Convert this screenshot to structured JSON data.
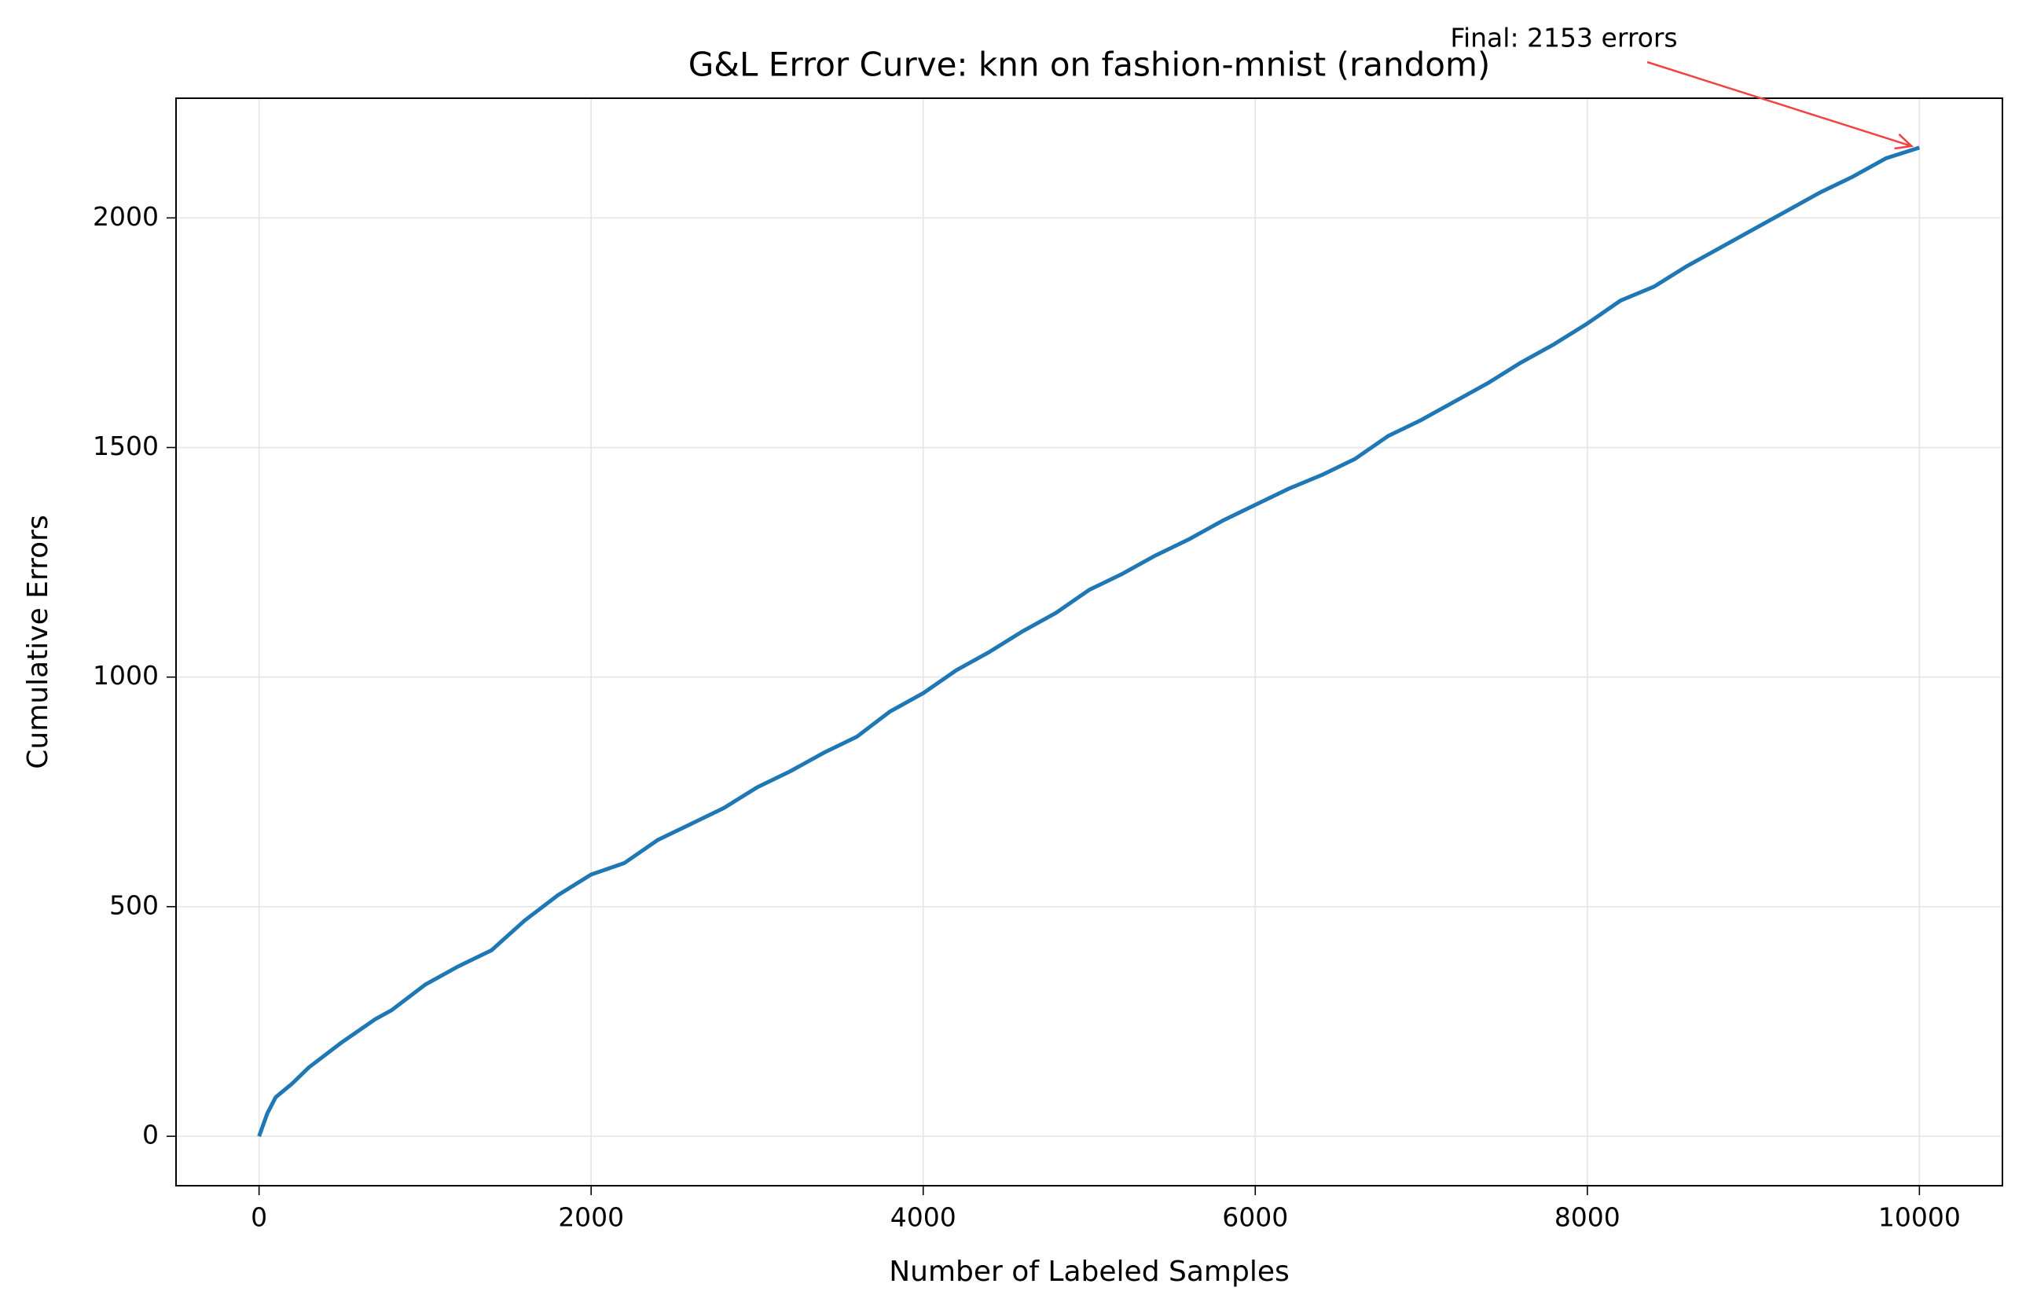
{
  "chart_data": {
    "type": "line",
    "title": "G&L Error Curve: knn on fashion-mnist (random)",
    "x_label": "Number of Labeled Samples",
    "y_label": "Cumulative Errors",
    "annotation": "Final: 2153 errors",
    "annotation_color": "#ee4444",
    "color": "#1f77b4",
    "grid": true,
    "x": [
      0,
      50,
      100,
      200,
      300,
      500,
      700,
      800,
      1000,
      1200,
      1400,
      1600,
      1800,
      2000,
      2200,
      2400,
      2600,
      2800,
      3000,
      3200,
      3400,
      3600,
      3800,
      4000,
      4200,
      4400,
      4600,
      4800,
      5000,
      5200,
      5400,
      5600,
      5800,
      6000,
      6200,
      6400,
      6600,
      6800,
      7000,
      7200,
      7400,
      7600,
      7800,
      8000,
      8200,
      8400,
      8600,
      8800,
      9000,
      9200,
      9400,
      9600,
      9800,
      10000
    ],
    "values": [
      0,
      50,
      85,
      115,
      150,
      205,
      255,
      275,
      330,
      370,
      405,
      470,
      525,
      570,
      595,
      645,
      680,
      715,
      760,
      795,
      835,
      870,
      925,
      965,
      1015,
      1055,
      1100,
      1140,
      1190,
      1225,
      1265,
      1300,
      1340,
      1375,
      1410,
      1440,
      1475,
      1525,
      1560,
      1600,
      1640,
      1685,
      1725,
      1770,
      1820,
      1850,
      1895,
      1935,
      1975,
      2015,
      2055,
      2090,
      2130,
      2153
    ],
    "xlim": [
      -500,
      10500
    ],
    "ylim": [
      -107.65,
      2260.65
    ],
    "xticks": [
      0,
      2000,
      4000,
      6000,
      8000,
      10000
    ],
    "yticks": [
      0,
      500,
      1000,
      1500,
      2000
    ]
  }
}
